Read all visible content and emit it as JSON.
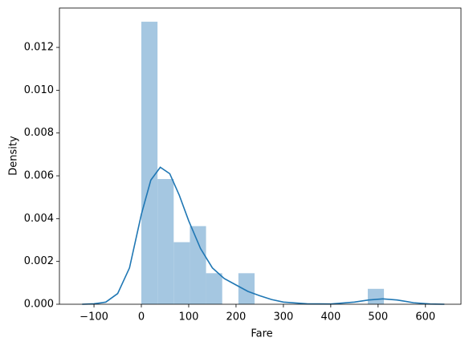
{
  "chart_data": {
    "type": "hist",
    "xlabel": "Fare",
    "ylabel": "Density",
    "bins": [
      0,
      34.16,
      68.31,
      102.47,
      136.62,
      170.78,
      204.93,
      239.09,
      273.24,
      307.4,
      341.55,
      375.71,
      409.86,
      444.02,
      478.17,
      512.33
    ],
    "counts": [
      0.0132,
      0.00585,
      0.0029,
      0.00365,
      0.00145,
      0,
      0.00145,
      0,
      0,
      0,
      0,
      0,
      0,
      0,
      0.00072
    ],
    "color": "#a5c7e1",
    "kde": {
      "color": "#1f77b4",
      "x": [
        -125,
        -100,
        -75,
        -50,
        -25,
        0,
        20,
        40,
        60,
        80,
        100,
        125,
        150,
        175,
        200,
        225,
        250,
        275,
        300,
        350,
        400,
        450,
        480,
        510,
        540,
        575,
        610,
        640
      ],
      "values": [
        0,
        2e-05,
        0.0001,
        0.0005,
        0.0017,
        0.0042,
        0.0058,
        0.0064,
        0.0061,
        0.0051,
        0.0039,
        0.0026,
        0.0017,
        0.0012,
        0.0009,
        0.0006,
        0.0004,
        0.00022,
        0.0001,
        2e-05,
        1e-05,
        0.0001,
        0.0002,
        0.00025,
        0.0002,
        7e-05,
        1e-05,
        0
      ]
    },
    "xlim": [
      -173,
      675
    ],
    "ylim": [
      0,
      0.01384
    ],
    "xticks": [
      {
        "value": -100,
        "label": "−100"
      },
      0,
      100,
      200,
      300,
      400,
      500,
      600
    ],
    "yticks": [
      {
        "value": 0,
        "label": "0.000"
      },
      {
        "value": 0.002,
        "label": "0.002"
      },
      {
        "value": 0.004,
        "label": "0.004"
      },
      {
        "value": 0.006,
        "label": "0.006"
      },
      {
        "value": 0.008,
        "label": "0.008"
      },
      {
        "value": 0.01,
        "label": "0.010"
      },
      {
        "value": 0.012,
        "label": "0.012"
      }
    ]
  }
}
